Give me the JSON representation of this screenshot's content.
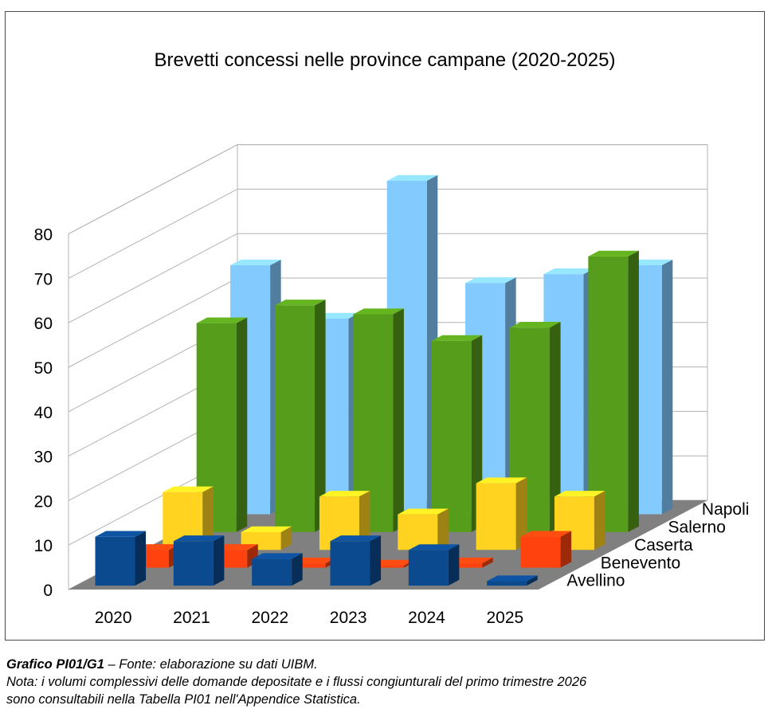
{
  "chart_data": {
    "type": "bar",
    "variant": "3d-depth-series",
    "title": "Brevetti concessi nelle province campane (2020-2025)",
    "categories": [
      "2020",
      "2021",
      "2022",
      "2023",
      "2024",
      "2025"
    ],
    "yticks": [
      "0",
      "10",
      "20",
      "30",
      "40",
      "50",
      "60",
      "70",
      "80"
    ],
    "ylim": [
      0,
      80
    ],
    "grid": true,
    "series": [
      {
        "name": "Avellino",
        "color": "#0b4a8f",
        "values": [
          11,
          10,
          6,
          10,
          8,
          1
        ]
      },
      {
        "name": "Benevento",
        "color": "#ff420e",
        "values": [
          4,
          4,
          1,
          0.5,
          1,
          7
        ]
      },
      {
        "name": "Caserta",
        "color": "#ffd320",
        "values": [
          13,
          4,
          12,
          8,
          15,
          12
        ]
      },
      {
        "name": "Salerno",
        "color": "#579d1c",
        "values": [
          47,
          51,
          49,
          43,
          46,
          62
        ]
      },
      {
        "name": "Napoli",
        "color": "#83caff",
        "values": [
          56,
          44,
          75,
          52,
          54,
          56
        ]
      }
    ]
  },
  "caption": {
    "label": "Grafico PI01/G1",
    "source": " – Fonte: elaborazione su dati UIBM.",
    "note_line1": "Nota: i volumi complessivi delle domande depositate e i flussi congiunturali del primo trimestre 2026",
    "note_line2": "sono consultabili nella Tabella PI01 nell'Appendice Statistica."
  }
}
